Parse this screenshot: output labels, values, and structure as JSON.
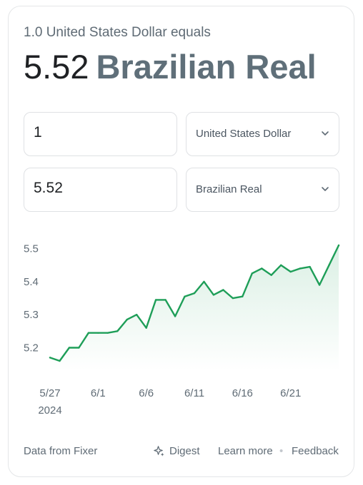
{
  "header": {
    "subtitle": "1.0 United States Dollar equals",
    "rate_value": "5.52",
    "rate_currency": "Brazilian Real"
  },
  "converter": {
    "from_amount": "1",
    "from_currency": "United States Dollar",
    "to_amount": "5.52",
    "to_currency": "Brazilian Real"
  },
  "chart_data": {
    "type": "area",
    "x": [
      "5/27",
      "5/28",
      "5/29",
      "5/30",
      "5/31",
      "6/1",
      "6/2",
      "6/3",
      "6/4",
      "6/5",
      "6/6",
      "6/7",
      "6/8",
      "6/9",
      "6/10",
      "6/11",
      "6/12",
      "6/13",
      "6/14",
      "6/15",
      "6/16",
      "6/17",
      "6/18",
      "6/19",
      "6/20",
      "6/21",
      "6/22",
      "6/23",
      "6/24",
      "6/25",
      "6/26"
    ],
    "y": [
      5.17,
      5.16,
      5.2,
      5.2,
      5.245,
      5.245,
      5.245,
      5.25,
      5.285,
      5.3,
      5.26,
      5.345,
      5.345,
      5.295,
      5.355,
      5.365,
      5.4,
      5.36,
      5.375,
      5.35,
      5.355,
      5.425,
      5.44,
      5.42,
      5.45,
      5.43,
      5.44,
      5.445,
      5.39,
      5.45,
      5.51
    ],
    "x_ticks": [
      "5/27",
      "6/1",
      "6/6",
      "6/11",
      "6/16",
      "6/21"
    ],
    "x_tick_year": "2024",
    "y_ticks": [
      "5.5",
      "5.4",
      "5.3",
      "5.2"
    ],
    "ylim": [
      5.16,
      5.51
    ],
    "line_color": "#1e9e58",
    "fill_color": "#1e9e58",
    "grid": false
  },
  "footer": {
    "source": "Data from Fixer",
    "digest": "Digest",
    "learn_more": "Learn more",
    "separator": "•",
    "feedback": "Feedback"
  }
}
